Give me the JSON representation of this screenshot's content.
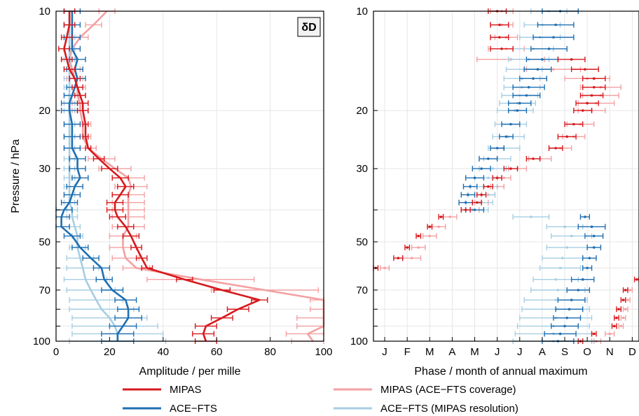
{
  "colors": {
    "mipas": "#d7191c",
    "ace": "#1f6fb2",
    "mipas_cov": "#f4a0a2",
    "ace_res": "#a6cee3"
  },
  "badge": {
    "text": "δD"
  },
  "legend": {
    "mipas": "MIPAS",
    "mipas_cov": "MIPAS (ACE−FTS coverage)",
    "ace": "ACE−FTS",
    "ace_res": "ACE−FTS (MIPAS resolution)"
  },
  "chart_data": [
    {
      "type": "line",
      "xlabel": "Amplitude / per mille",
      "ylabel": "Pressure / hPa",
      "xlim": [
        0,
        100
      ],
      "ylim": [
        100,
        10
      ],
      "yscale": "log",
      "xticks": [
        "0",
        "20",
        "40",
        "60",
        "80",
        "100"
      ],
      "yticks": [
        "10",
        "20",
        "30",
        "50",
        "70",
        "100"
      ],
      "grid": true,
      "series": [
        {
          "name": "MIPAS",
          "color_key": "mipas",
          "p": [
            10,
            11,
            12,
            13,
            14,
            15,
            16,
            17,
            18,
            19,
            20,
            22,
            24,
            26,
            28,
            30,
            32,
            34,
            36,
            38,
            40,
            42,
            45,
            48,
            52,
            56,
            60,
            65,
            70,
            75,
            80,
            85,
            90,
            95,
            100
          ],
          "x": [
            5,
            5,
            4,
            3,
            4,
            5,
            7,
            8,
            9,
            10,
            10,
            11,
            11,
            12,
            16,
            20,
            24,
            26,
            24,
            22,
            22,
            23,
            26,
            28,
            30,
            32,
            34,
            48,
            62,
            76,
            68,
            62,
            56,
            55,
            56
          ],
          "err": [
            2,
            2,
            2,
            2,
            2,
            2,
            2,
            2,
            2,
            2,
            2,
            1,
            1,
            1,
            2,
            3,
            3,
            3,
            3,
            3,
            3,
            3,
            3,
            3,
            2,
            2,
            2,
            3,
            3,
            3,
            4,
            4,
            4,
            4,
            4
          ]
        },
        {
          "name": "MIPAS (ACE−FTS coverage)",
          "color_key": "mipas_cov",
          "p": [
            10,
            11,
            12,
            13,
            14,
            15,
            16,
            17,
            18,
            19,
            20,
            22,
            24,
            26,
            28,
            30,
            32,
            34,
            36,
            38,
            40,
            42,
            45,
            48,
            52,
            56,
            60,
            65,
            70,
            75,
            80,
            85,
            90,
            95,
            100
          ],
          "x": [
            19,
            14,
            9,
            6,
            5,
            6,
            7,
            8,
            8,
            9,
            9,
            10,
            10,
            12,
            17,
            22,
            27,
            28,
            27,
            27,
            27,
            27,
            27,
            25,
            25,
            26,
            30,
            54,
            78,
            100,
            100,
            100,
            100,
            94,
            96
          ],
          "err": [
            3,
            3,
            3,
            3,
            3,
            3,
            3,
            3,
            3,
            3,
            3,
            3,
            3,
            3,
            5,
            6,
            6,
            6,
            6,
            6,
            6,
            6,
            6,
            5,
            5,
            5,
            5,
            20,
            20,
            5,
            5,
            10,
            10,
            8,
            8
          ]
        },
        {
          "name": "ACE−FTS",
          "color_key": "ace",
          "p": [
            10,
            11,
            12,
            13,
            14,
            15,
            16,
            17,
            18,
            19,
            20,
            22,
            24,
            26,
            28,
            30,
            32,
            34,
            36,
            38,
            40,
            42,
            45,
            48,
            52,
            56,
            60,
            65,
            70,
            75,
            80,
            85,
            90,
            95,
            100
          ],
          "x": [
            6,
            6,
            6,
            6,
            8,
            7,
            8,
            7,
            6,
            5,
            5,
            6,
            6,
            6,
            8,
            8,
            9,
            7,
            6,
            5,
            3,
            2,
            2,
            6,
            9,
            13,
            17,
            18,
            21,
            26,
            27,
            27,
            25,
            23,
            23
          ],
          "err": [
            3,
            3,
            3,
            3,
            3,
            3,
            3,
            3,
            3,
            3,
            3,
            3,
            3,
            3,
            3,
            3,
            3,
            3,
            3,
            3,
            3,
            3,
            3,
            3,
            3,
            3,
            3,
            3,
            4,
            4,
            4,
            5,
            5,
            6,
            6
          ]
        },
        {
          "name": "ACE−FTS (MIPAS resolution)",
          "color_key": "ace_res",
          "p": [
            10,
            11,
            12,
            13,
            14,
            15,
            16,
            17,
            18,
            19,
            20,
            22,
            24,
            26,
            28,
            30,
            32,
            34,
            36,
            38,
            40,
            42,
            45,
            48,
            52,
            56,
            60,
            65,
            70,
            75,
            80,
            85,
            90,
            95,
            100
          ],
          "x": [
            5,
            5,
            5,
            5,
            5,
            5,
            5,
            5,
            5,
            5,
            5,
            5,
            5,
            5,
            5,
            5,
            5,
            5,
            5,
            5,
            6,
            6,
            7,
            8,
            8,
            9,
            10,
            11,
            13,
            15,
            17,
            20,
            22,
            23,
            23
          ],
          "err": [
            2,
            2,
            2,
            2,
            2,
            2,
            2,
            2,
            2,
            2,
            2,
            2,
            2,
            2,
            2,
            2,
            2,
            2,
            2,
            2,
            2,
            2,
            2,
            2,
            3,
            5,
            6,
            8,
            9,
            10,
            12,
            14,
            16,
            17,
            18
          ]
        }
      ]
    },
    {
      "type": "scatter",
      "xlabel": "Phase / month of annual maximum",
      "ylabel": "",
      "xlim": [
        0.5,
        12.3
      ],
      "ylim": [
        100,
        10
      ],
      "yscale": "log",
      "xticks": [
        "J",
        "F",
        "M",
        "A",
        "M",
        "J",
        "J",
        "A",
        "S",
        "O",
        "N",
        "D"
      ],
      "yticks": [
        "10",
        "20",
        "30",
        "50",
        "70",
        "100"
      ],
      "grid": true,
      "series": [
        {
          "name": "MIPAS",
          "color_key": "mipas",
          "p": [
            10,
            11,
            12,
            13,
            14,
            15,
            16,
            17,
            18,
            19,
            20,
            22,
            24,
            26,
            28,
            30,
            32,
            34,
            36,
            38,
            40,
            42,
            45,
            48,
            52,
            56,
            60,
            65,
            70,
            75,
            80,
            85,
            90,
            95,
            100
          ],
          "x": [
            6.0,
            6.1,
            6.1,
            6.2,
            9.3,
            9.9,
            10.3,
            10.3,
            10.2,
            10.0,
            9.8,
            9.4,
            9.1,
            8.6,
            7.6,
            6.6,
            6.0,
            5.6,
            5.3,
            5.1,
            4.6,
            3.5,
            3.0,
            2.5,
            2.0,
            1.6,
            0.6,
            12.2,
            11.7,
            11.6,
            11.4,
            11.3,
            11.2,
            10.3,
            9.7
          ],
          "err": [
            0.4,
            0.4,
            0.4,
            0.5,
            0.6,
            0.6,
            0.5,
            0.5,
            0.5,
            0.5,
            0.4,
            0.4,
            0.4,
            0.3,
            0.3,
            0.3,
            0.2,
            0.2,
            0.2,
            0.2,
            0.2,
            0.1,
            0.1,
            0.1,
            0.1,
            0.2,
            0.1,
            0.1,
            0.1,
            0.1,
            0.1,
            0.1,
            0.1,
            0.1,
            0.1
          ]
        },
        {
          "name": "MIPAS (ACE−FTS coverage)",
          "color_key": "mipas_cov",
          "p": [
            10,
            11,
            12,
            13,
            14,
            15,
            16,
            17,
            18,
            19,
            20,
            22,
            24,
            26,
            28,
            30,
            32,
            34,
            36,
            38,
            40,
            42,
            45,
            48,
            52,
            56,
            60,
            65,
            70,
            75,
            80,
            85,
            90,
            95,
            100
          ],
          "x": [
            6.2,
            6.2,
            6.4,
            6.4,
            6.6,
            8.5,
            10.0,
            10.6,
            10.6,
            10.4,
            10.2,
            9.7,
            9.4,
            8.8,
            7.9,
            6.9,
            6.3,
            6.0,
            5.6,
            5.3,
            4.9,
            3.9,
            3.4,
            3.0,
            2.5,
            2.2,
            1.0,
            12.4,
            11.9,
            11.8,
            11.7,
            11.6,
            11.5,
            11.0,
            10.4
          ],
          "err": [
            0.5,
            0.5,
            0.5,
            0.8,
            1.5,
            1.2,
            1.0,
            0.9,
            0.8,
            0.8,
            0.6,
            0.6,
            0.5,
            0.5,
            0.5,
            0.4,
            0.3,
            0.3,
            0.3,
            0.3,
            0.3,
            0.3,
            0.3,
            0.3,
            0.3,
            0.4,
            0.2,
            0.1,
            0.1,
            0.1,
            0.1,
            0.1,
            0.1,
            0.2,
            0.2
          ]
        },
        {
          "name": "ACE−FTS",
          "color_key": "ace",
          "p": [
            10,
            11,
            12,
            13,
            14,
            15,
            16,
            17,
            18,
            19,
            20,
            22,
            24,
            26,
            28,
            30,
            32,
            34,
            36,
            38,
            40,
            42,
            45,
            48,
            52,
            56,
            60,
            65,
            70,
            75,
            80,
            85,
            90,
            95,
            100
          ],
          "x": [
            8.8,
            8.6,
            8.5,
            8.3,
            8.0,
            7.8,
            7.6,
            7.4,
            7.3,
            7.0,
            6.9,
            6.6,
            6.4,
            6.0,
            5.6,
            5.3,
            5.0,
            4.8,
            4.7,
            4.6,
            5.0,
            9.9,
            10.2,
            10.3,
            10.3,
            10.1,
            10.0,
            9.8,
            9.6,
            9.3,
            9.2,
            9.1,
            9.0,
            8.8,
            8.7
          ],
          "err": [
            0.8,
            0.8,
            0.9,
            0.8,
            0.7,
            0.6,
            0.6,
            0.7,
            0.6,
            0.5,
            0.4,
            0.4,
            0.3,
            0.3,
            0.4,
            0.4,
            0.4,
            0.3,
            0.3,
            0.3,
            0.4,
            0.2,
            0.6,
            0.4,
            0.3,
            0.3,
            0.2,
            0.5,
            0.5,
            0.6,
            0.6,
            0.6,
            0.6,
            0.7,
            0.7
          ]
        },
        {
          "name": "ACE−FTS (MIPAS resolution)",
          "color_key": "ace_res",
          "p": [
            10,
            11,
            12,
            13,
            14,
            15,
            16,
            17,
            18,
            19,
            20,
            22,
            24,
            26,
            28,
            30,
            32,
            34,
            36,
            38,
            40,
            42,
            45,
            48,
            52,
            56,
            60,
            65,
            70,
            75,
            80,
            85,
            90,
            95,
            100
          ],
          "x": [
            8.3,
            8.0,
            7.9,
            7.6,
            7.4,
            7.2,
            7.1,
            7.1,
            7.0,
            6.9,
            6.8,
            6.6,
            6.5,
            6.3,
            6.0,
            5.8,
            5.6,
            5.4,
            5.3,
            5.2,
            5.0,
            7.5,
            9.0,
            9.3,
            9.1,
            8.9,
            8.8,
            8.6,
            8.7,
            8.6,
            8.6,
            8.6,
            8.5,
            8.5,
            8.5
          ],
          "err": [
            0.8,
            0.8,
            0.9,
            0.9,
            0.9,
            0.8,
            0.8,
            0.8,
            0.8,
            0.8,
            0.8,
            0.7,
            0.7,
            0.7,
            0.6,
            0.6,
            0.6,
            0.6,
            0.6,
            0.6,
            0.6,
            0.8,
            0.8,
            0.9,
            0.9,
            0.9,
            0.9,
            1.0,
            1.2,
            1.4,
            1.5,
            1.6,
            1.6,
            1.7,
            1.8
          ]
        }
      ]
    }
  ]
}
